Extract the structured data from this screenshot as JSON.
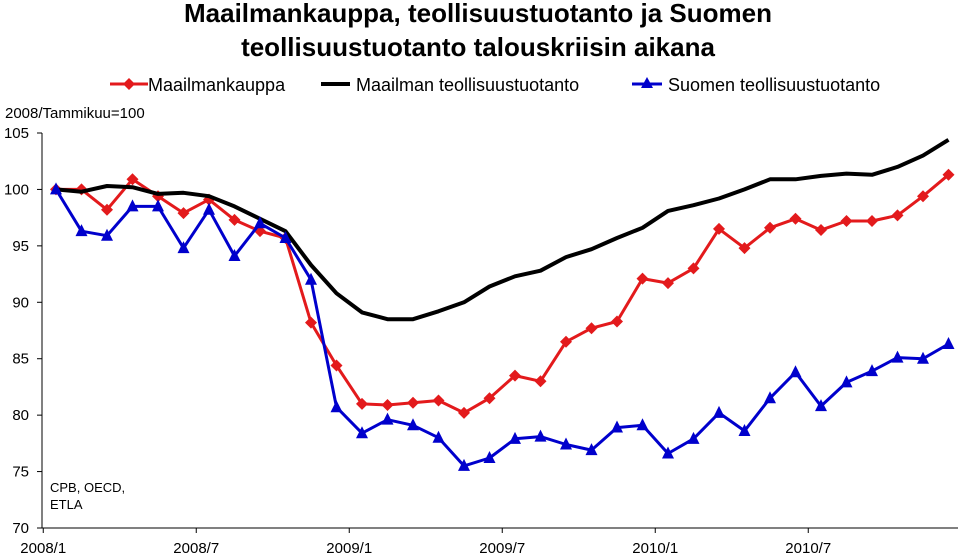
{
  "chart_data": {
    "type": "line",
    "title_line1": "Maailmankauppa, teollisuustuotanto ja Suomen",
    "title_line2": "teollisuustuotanto talouskriisin aikana",
    "ylabel": "2008/Tammikuu=100",
    "source_line1": "CPB, OECD,",
    "source_line2": "ETLA",
    "ylim": [
      70,
      105
    ],
    "yticks": [
      70,
      75,
      80,
      85,
      90,
      95,
      100,
      105
    ],
    "x": [
      "2008/1",
      "2008/2",
      "2008/3",
      "2008/4",
      "2008/5",
      "2008/6",
      "2008/7",
      "2008/8",
      "2008/9",
      "2008/10",
      "2008/11",
      "2008/12",
      "2009/1",
      "2009/2",
      "2009/3",
      "2009/4",
      "2009/5",
      "2009/6",
      "2009/7",
      "2009/8",
      "2009/9",
      "2009/10",
      "2009/11",
      "2009/12",
      "2010/1",
      "2010/2",
      "2010/3",
      "2010/4",
      "2010/5",
      "2010/6",
      "2010/7",
      "2010/8",
      "2010/9",
      "2010/10",
      "2010/11",
      "2010/12"
    ],
    "xtick_labels": [
      "2008/1",
      "2008/7",
      "2009/1",
      "2009/7",
      "2010/1",
      "2010/7"
    ],
    "xtick_indices": [
      0,
      6,
      12,
      18,
      24,
      30
    ],
    "grid": false,
    "legend_position": "top",
    "series": [
      {
        "name": "Maailmankauppa",
        "color": "#e31a1c",
        "marker": "diamond",
        "values": [
          100.0,
          100.0,
          98.2,
          100.9,
          99.4,
          97.9,
          99.1,
          97.3,
          96.3,
          95.7,
          88.2,
          84.4,
          81.0,
          80.9,
          81.1,
          81.3,
          80.2,
          81.5,
          83.5,
          83.0,
          86.5,
          87.7,
          88.3,
          92.1,
          91.7,
          93.0,
          96.5,
          94.8,
          96.6,
          97.4,
          96.4,
          97.2,
          97.2,
          97.7,
          99.4,
          101.3
        ]
      },
      {
        "name": "Maailman teollisuustuotanto",
        "color": "#000000",
        "marker": "none",
        "values": [
          100.0,
          99.8,
          100.3,
          100.2,
          99.6,
          99.7,
          99.4,
          98.5,
          97.4,
          96.3,
          93.3,
          90.8,
          89.1,
          88.5,
          88.5,
          89.2,
          90.0,
          91.4,
          92.3,
          92.8,
          94.0,
          94.7,
          95.7,
          96.6,
          98.1,
          98.6,
          99.2,
          100.0,
          100.9,
          100.9,
          101.2,
          101.4,
          101.3,
          102.0,
          103.0,
          104.4
        ]
      },
      {
        "name": "Suomen teollisuustuotanto",
        "color": "#0000cc",
        "marker": "triangle",
        "values": [
          100.0,
          96.3,
          95.9,
          98.5,
          98.5,
          94.8,
          98.2,
          94.1,
          97.0,
          95.7,
          92.0,
          80.7,
          78.4,
          79.6,
          79.1,
          78.0,
          75.5,
          76.2,
          77.9,
          78.1,
          77.4,
          76.9,
          78.9,
          79.1,
          76.6,
          77.9,
          80.2,
          78.6,
          81.5,
          83.8,
          80.8,
          82.9,
          83.9,
          85.1,
          85.0,
          86.3
        ]
      }
    ]
  }
}
